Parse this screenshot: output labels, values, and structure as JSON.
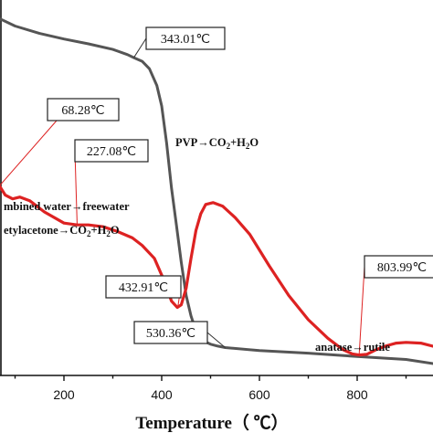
{
  "chart_data": {
    "type": "line",
    "title": "",
    "xlabel": "Temperature（ ℃）",
    "ylabel": "",
    "xlim": [
      20,
      1000
    ],
    "ylim": [
      0,
      100
    ],
    "x_ticks": [
      "200",
      "400",
      "600",
      "800"
    ],
    "x_tick_values": [
      200,
      400,
      600,
      800
    ],
    "grid": false,
    "series": [
      {
        "color": "#555555",
        "points": [
          [
            20,
            98.5
          ],
          [
            60,
            96
          ],
          [
            100,
            93.5
          ],
          [
            150,
            91.5
          ],
          [
            200,
            90
          ],
          [
            250,
            88.7
          ],
          [
            300,
            87.2
          ],
          [
            330,
            85.8
          ],
          [
            343,
            85.0
          ],
          [
            360,
            84.0
          ],
          [
            375,
            82.0
          ],
          [
            390,
            77.5
          ],
          [
            400,
            72
          ],
          [
            410,
            62
          ],
          [
            420,
            50
          ],
          [
            430,
            40
          ],
          [
            440,
            30
          ],
          [
            450,
            21
          ],
          [
            460,
            15.5
          ],
          [
            470,
            11.5
          ],
          [
            480,
            9.5
          ],
          [
            490,
            8.5
          ],
          [
            500,
            7.9
          ],
          [
            515,
            7.4
          ],
          [
            530,
            7.0
          ],
          [
            600,
            6.2
          ],
          [
            700,
            5.5
          ],
          [
            800,
            4.6
          ],
          [
            900,
            3.8
          ],
          [
            1000,
            1.8
          ]
        ]
      },
      {
        "color": "#dd2222",
        "points": [
          [
            20,
            66
          ],
          [
            40,
            60
          ],
          [
            55,
            55
          ],
          [
            68,
            50.5
          ],
          [
            80,
            48
          ],
          [
            95,
            47
          ],
          [
            110,
            47.5
          ],
          [
            130,
            46.5
          ],
          [
            160,
            43.5
          ],
          [
            200,
            40.5
          ],
          [
            227,
            40
          ],
          [
            250,
            40
          ],
          [
            280,
            39.5
          ],
          [
            310,
            38.2
          ],
          [
            340,
            36.5
          ],
          [
            360,
            34.5
          ],
          [
            385,
            31
          ],
          [
            405,
            25
          ],
          [
            420,
            19.5
          ],
          [
            432,
            17.8
          ],
          [
            440,
            18.5
          ],
          [
            450,
            23
          ],
          [
            460,
            31
          ],
          [
            470,
            38.5
          ],
          [
            480,
            43
          ],
          [
            490,
            45.5
          ],
          [
            505,
            46
          ],
          [
            525,
            45
          ],
          [
            550,
            42
          ],
          [
            580,
            37.5
          ],
          [
            620,
            29
          ],
          [
            660,
            21
          ],
          [
            700,
            14.5
          ],
          [
            740,
            9.5
          ],
          [
            770,
            6.5
          ],
          [
            790,
            5.3
          ],
          [
            804,
            5.0
          ],
          [
            820,
            5.2
          ],
          [
            840,
            6.5
          ],
          [
            860,
            7.5
          ],
          [
            880,
            8.2
          ],
          [
            900,
            8.4
          ],
          [
            930,
            8.2
          ],
          [
            960,
            7.2
          ],
          [
            1000,
            5.5
          ]
        ]
      }
    ],
    "callouts": [
      {
        "text": "343.01℃",
        "x": 343,
        "series": 0
      },
      {
        "text": "68.28℃",
        "x": 68,
        "series": 1
      },
      {
        "text": "227.08℃",
        "x": 227,
        "series": 1
      },
      {
        "text": "432.91℃",
        "x": 433,
        "series": 1
      },
      {
        "text": "530.36℃",
        "x": 530,
        "series": 0
      },
      {
        "text": "803.99℃",
        "x": 804,
        "series": 1
      }
    ],
    "annotations": [
      {
        "main": "PVP→CO",
        "sub1": "2",
        "mid": "+H",
        "sub2": "2",
        "end": "O"
      },
      {
        "main": "mbined water→freewater"
      },
      {
        "main": "etylacetone→CO",
        "sub1": "2",
        "mid": "+H",
        "sub2": "2",
        "end": "O"
      },
      {
        "main": "anatase→rutile"
      }
    ]
  }
}
